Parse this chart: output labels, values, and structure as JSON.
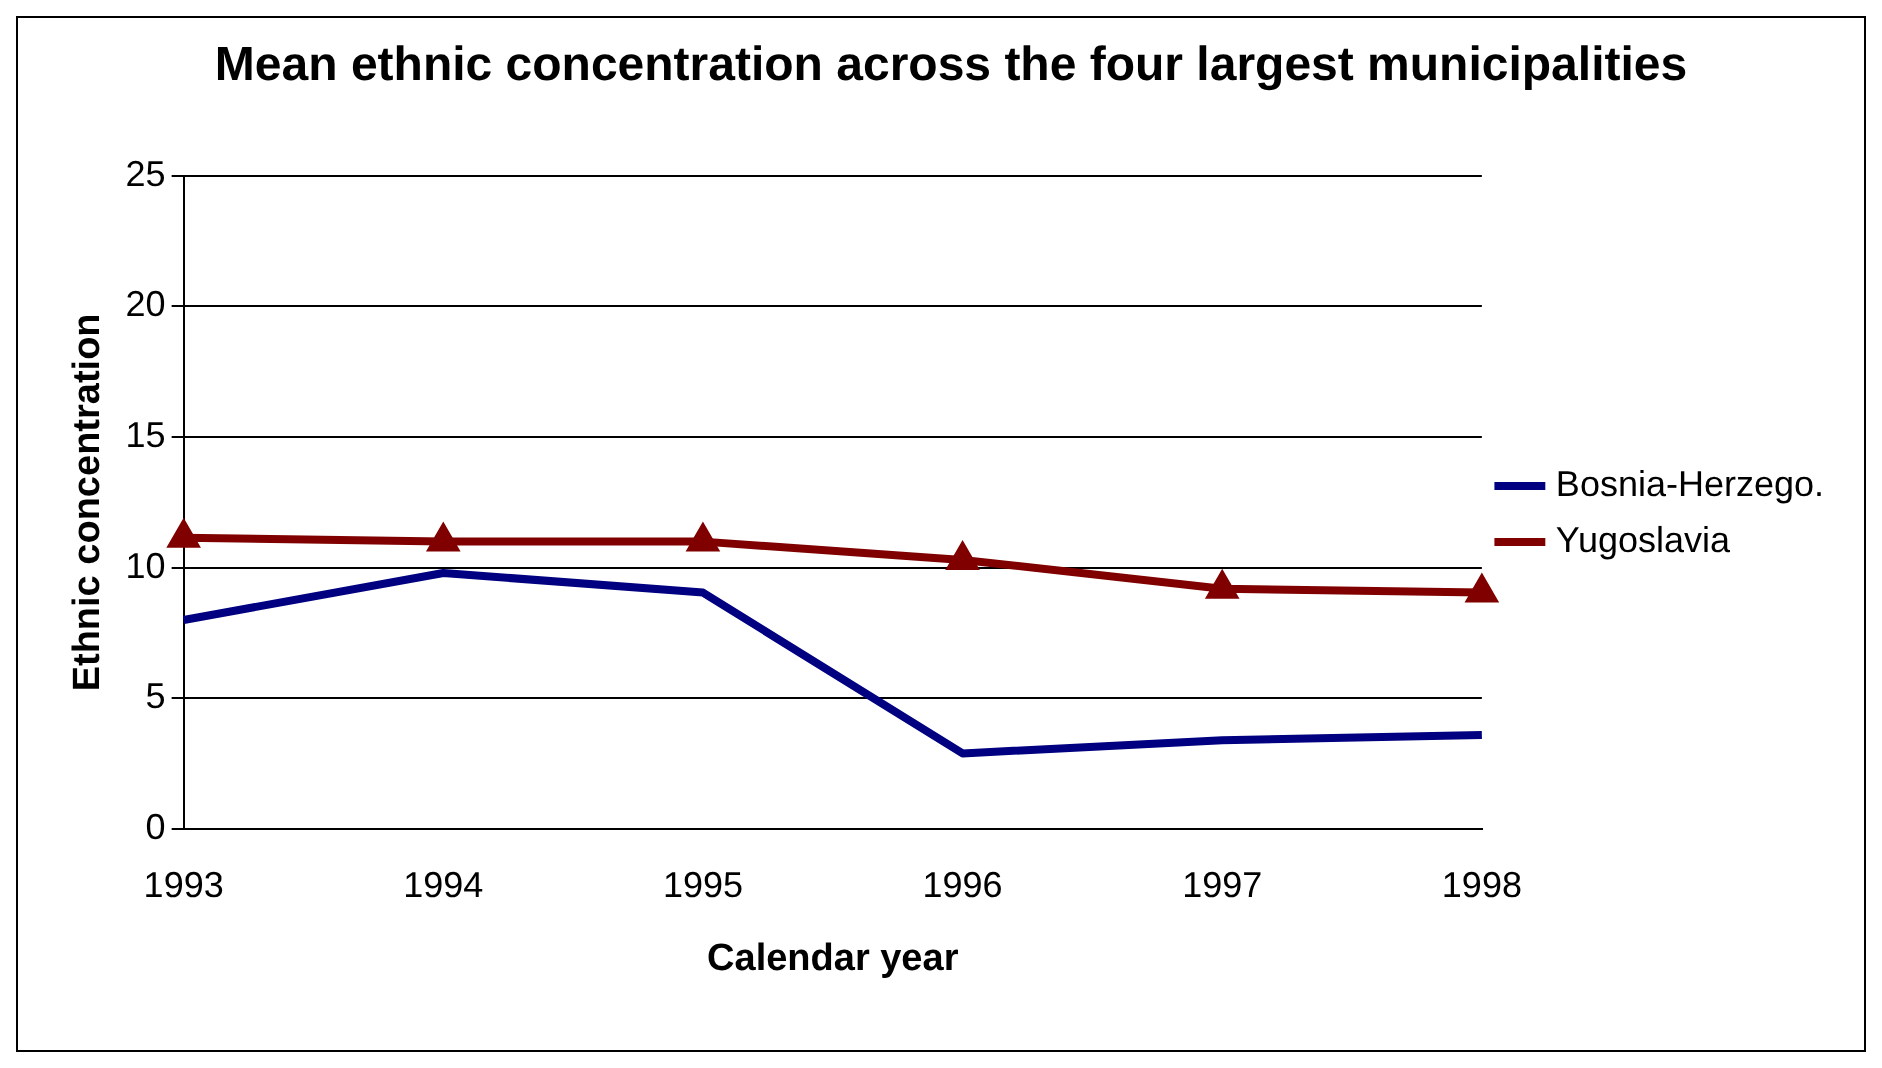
{
  "chart_data": {
    "type": "line",
    "title": "Mean ethnic concentration across the four largest municipalities",
    "xlabel": "Calendar year",
    "ylabel": "Ethnic concentration",
    "categories": [
      "1993",
      "1994",
      "1995",
      "1996",
      "1997",
      "1998"
    ],
    "series": [
      {
        "name": "Bosnia-Herzego.",
        "color": "#000080",
        "values": [
          8.0,
          9.8,
          9.05,
          2.9,
          3.4,
          3.6
        ],
        "marker": "none"
      },
      {
        "name": "Yugoslavia",
        "color": "#800000",
        "values": [
          11.15,
          11.0,
          11.0,
          10.3,
          9.2,
          9.05
        ],
        "marker": "triangle"
      }
    ],
    "ylim": [
      0,
      25
    ],
    "yticks": [
      0,
      5,
      10,
      15,
      20,
      25
    ],
    "grid": "y",
    "legend": "right",
    "line_style": "solid"
  }
}
